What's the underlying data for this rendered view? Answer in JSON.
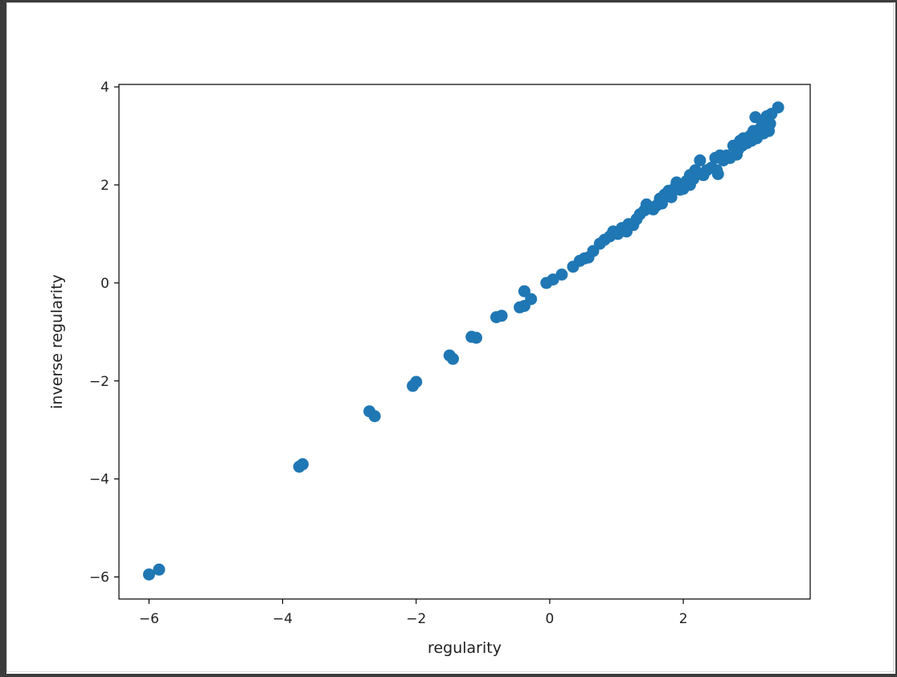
{
  "chart_data": {
    "type": "scatter",
    "title": "",
    "xlabel": "regularity",
    "ylabel": "inverse regularity",
    "xlim": [
      -6.45,
      3.9
    ],
    "ylim": [
      -6.45,
      4.05
    ],
    "xticks": [
      -6,
      -4,
      -2,
      0,
      2
    ],
    "xtick_labels": [
      "−6",
      "−4",
      "−2",
      "0",
      "2"
    ],
    "yticks": [
      -6,
      -4,
      -2,
      0,
      2,
      4
    ],
    "ytick_labels": [
      "−6",
      "−4",
      "−2",
      "0",
      "2",
      "4"
    ],
    "grid": false,
    "color": "#1f77b4",
    "points": [
      [
        -6.0,
        -5.95
      ],
      [
        -5.85,
        -5.85
      ],
      [
        -3.75,
        -3.75
      ],
      [
        -3.7,
        -3.7
      ],
      [
        -2.7,
        -2.62
      ],
      [
        -2.62,
        -2.72
      ],
      [
        -2.05,
        -2.1
      ],
      [
        -2.0,
        -2.02
      ],
      [
        -1.5,
        -1.48
      ],
      [
        -1.45,
        -1.55
      ],
      [
        -1.17,
        -1.1
      ],
      [
        -1.1,
        -1.12
      ],
      [
        -0.8,
        -0.7
      ],
      [
        -0.72,
        -0.67
      ],
      [
        -0.45,
        -0.5
      ],
      [
        -0.38,
        -0.47
      ],
      [
        -0.38,
        -0.17
      ],
      [
        -0.28,
        -0.33
      ],
      [
        -0.05,
        0.0
      ],
      [
        0.05,
        0.07
      ],
      [
        0.18,
        0.17
      ],
      [
        0.35,
        0.33
      ],
      [
        0.45,
        0.45
      ],
      [
        0.52,
        0.5
      ],
      [
        0.58,
        0.52
      ],
      [
        0.65,
        0.65
      ],
      [
        0.75,
        0.8
      ],
      [
        0.82,
        0.88
      ],
      [
        0.9,
        0.95
      ],
      [
        0.95,
        1.05
      ],
      [
        1.02,
        1.0
      ],
      [
        1.08,
        1.12
      ],
      [
        1.15,
        1.05
      ],
      [
        1.18,
        1.2
      ],
      [
        1.25,
        1.18
      ],
      [
        1.3,
        1.3
      ],
      [
        1.35,
        1.4
      ],
      [
        1.42,
        1.48
      ],
      [
        1.45,
        1.6
      ],
      [
        1.55,
        1.5
      ],
      [
        1.6,
        1.58
      ],
      [
        1.65,
        1.72
      ],
      [
        1.68,
        1.62
      ],
      [
        1.72,
        1.8
      ],
      [
        1.78,
        1.88
      ],
      [
        1.82,
        1.75
      ],
      [
        1.88,
        1.95
      ],
      [
        1.9,
        2.05
      ],
      [
        1.95,
        1.9
      ],
      [
        2.0,
        1.92
      ],
      [
        2.05,
        2.08
      ],
      [
        2.1,
        2.0
      ],
      [
        2.1,
        2.2
      ],
      [
        2.15,
        2.12
      ],
      [
        2.18,
        2.3
      ],
      [
        2.2,
        2.25
      ],
      [
        2.25,
        2.5
      ],
      [
        2.3,
        2.2
      ],
      [
        2.35,
        2.3
      ],
      [
        2.42,
        2.35
      ],
      [
        2.48,
        2.55
      ],
      [
        2.5,
        2.3
      ],
      [
        2.52,
        2.22
      ],
      [
        2.55,
        2.6
      ],
      [
        2.6,
        2.5
      ],
      [
        2.65,
        2.6
      ],
      [
        2.7,
        2.55
      ],
      [
        2.75,
        2.8
      ],
      [
        2.8,
        2.62
      ],
      [
        2.82,
        2.72
      ],
      [
        2.85,
        2.9
      ],
      [
        2.88,
        2.8
      ],
      [
        2.9,
        2.95
      ],
      [
        2.95,
        2.85
      ],
      [
        3.0,
        3.0
      ],
      [
        3.02,
        2.9
      ],
      [
        3.05,
        3.1
      ],
      [
        3.08,
        3.38
      ],
      [
        3.1,
        2.95
      ],
      [
        3.15,
        3.15
      ],
      [
        3.18,
        3.3
      ],
      [
        3.2,
        3.05
      ],
      [
        3.25,
        3.4
      ],
      [
        3.28,
        3.1
      ],
      [
        3.3,
        3.25
      ],
      [
        3.32,
        3.45
      ],
      [
        3.42,
        3.58
      ]
    ]
  }
}
